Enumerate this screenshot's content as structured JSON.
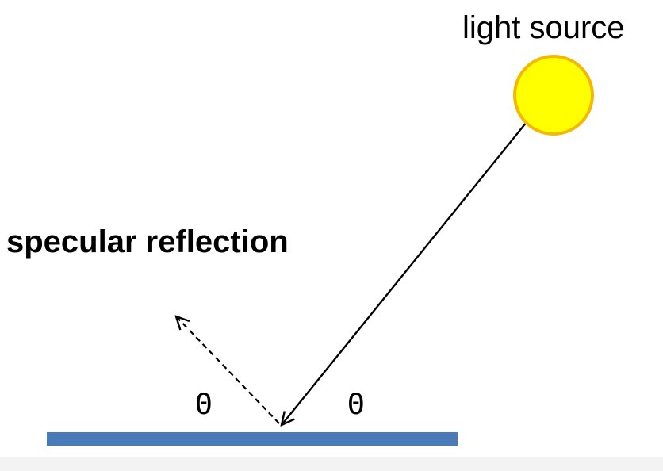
{
  "labels": {
    "light_source": "light source",
    "specular_reflection": "specular reflection",
    "angle_left": "Θ",
    "angle_right": "Θ"
  },
  "colors": {
    "surface": "#4a7ab8",
    "sun_fill": "#ffff00",
    "sun_stroke": "#f5b800",
    "ray": "#000000",
    "background": "#ffffff"
  },
  "rays": {
    "incident": "solid",
    "reflected": "dashed"
  }
}
